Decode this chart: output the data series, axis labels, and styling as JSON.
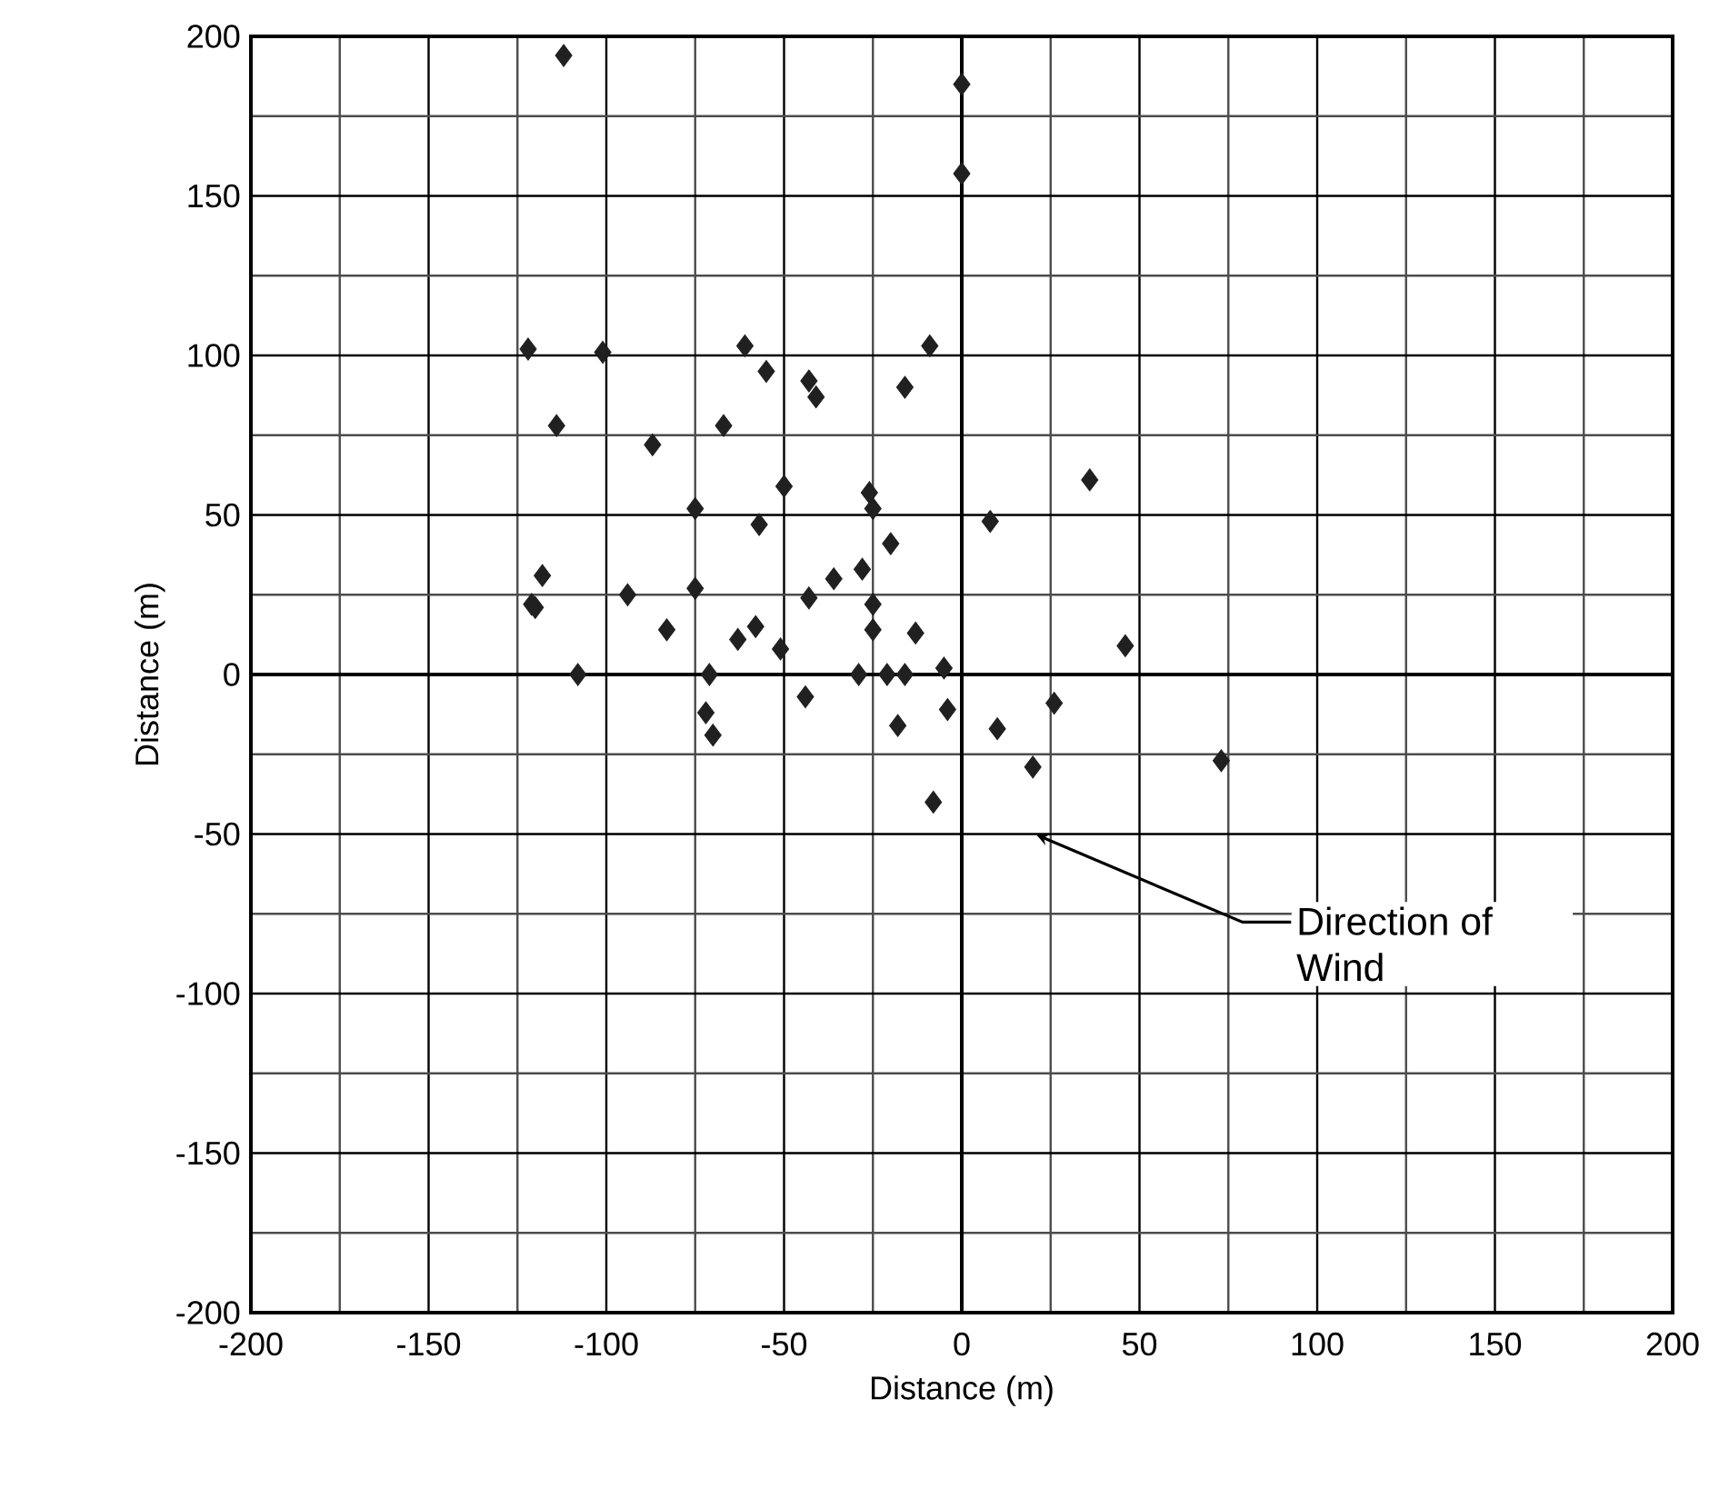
{
  "chart_data": {
    "type": "scatter",
    "xlabel": "Distance (m)",
    "ylabel": "Distance (m)",
    "x": [
      -112,
      0,
      0,
      -122,
      -101,
      -61,
      -55,
      -43,
      -41,
      -9,
      -16,
      -114,
      -87,
      -67,
      -50,
      -26,
      -25,
      -75,
      -57,
      -20,
      -118,
      -121,
      -120,
      -94,
      -75,
      -83,
      -63,
      -58,
      -51,
      -43,
      -36,
      -28,
      -25,
      -25,
      -13,
      -108,
      -71,
      -29,
      -21,
      -16,
      -5,
      -44,
      -72,
      -70,
      -18,
      -4,
      8,
      36,
      46,
      26,
      10,
      20,
      73,
      -8
    ],
    "values": [
      194,
      185,
      157,
      102,
      101,
      103,
      95,
      92,
      87,
      103,
      90,
      78,
      72,
      78,
      59,
      57,
      52,
      52,
      47,
      41,
      31,
      22,
      21,
      25,
      27,
      14,
      11,
      15,
      8,
      24,
      30,
      33,
      22,
      14,
      13,
      0,
      0,
      0,
      0,
      0,
      2,
      -7,
      -12,
      -19,
      -16,
      -11,
      48,
      61,
      9,
      -9,
      -17,
      -29,
      -27,
      -40
    ],
    "color": "#202020",
    "marker": "diamond",
    "grid": true,
    "xlim": [
      -200,
      200
    ],
    "ylim": [
      -200,
      200
    ],
    "xticks": [
      -200,
      -150,
      -100,
      -50,
      0,
      50,
      100,
      150,
      200
    ],
    "yticks": [
      -200,
      -150,
      -100,
      -50,
      0,
      50,
      100,
      150,
      200
    ],
    "annotations": [
      "Direction of Wind"
    ]
  }
}
